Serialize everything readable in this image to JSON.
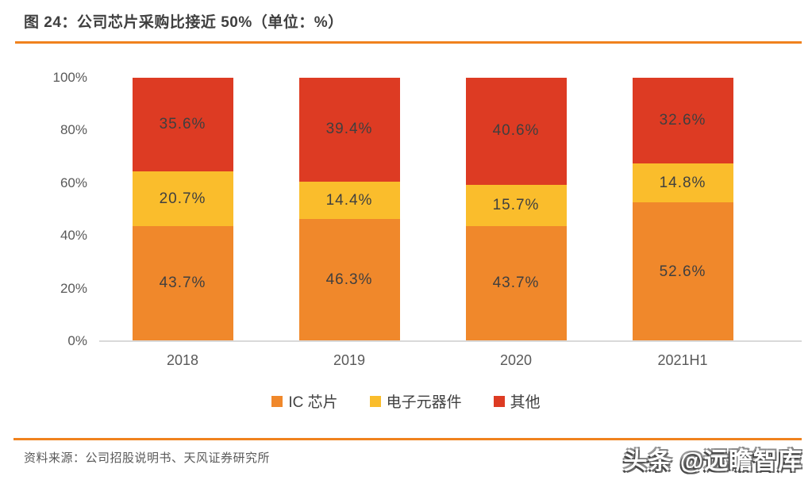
{
  "header": {
    "title": "图 24：公司芯片采购比接近 50%（单位：%）"
  },
  "chart_data": {
    "type": "bar",
    "stacked": true,
    "percent_stacked": true,
    "title": "图 24：公司芯片采购比接近 50%（单位：%）",
    "unit": "%",
    "categories": [
      "2018",
      "2019",
      "2020",
      "2021H1"
    ],
    "series": [
      {
        "name": "IC 芯片",
        "color": "#f0882b",
        "values": [
          43.7,
          46.3,
          43.7,
          52.6
        ]
      },
      {
        "name": "电子元器件",
        "color": "#fabd2c",
        "values": [
          20.7,
          14.4,
          15.7,
          14.8
        ]
      },
      {
        "name": "其他",
        "color": "#dd3b23",
        "values": [
          35.6,
          39.4,
          40.6,
          32.6
        ]
      }
    ],
    "xlabel": "",
    "ylabel": "",
    "ylim": [
      0,
      100
    ],
    "y_ticks": [
      0,
      20,
      40,
      60,
      80,
      100
    ],
    "y_tick_labels": [
      "0%",
      "20%",
      "40%",
      "60%",
      "80%",
      "100%"
    ],
    "grid": false,
    "legend_position": "bottom",
    "data_labels": "inside-center"
  },
  "footer": {
    "source": "资料来源：公司招股说明书、天风证券研究所",
    "watermark": "头条 @远瞻智库"
  },
  "colors": {
    "accent_rule": "#f0821e",
    "title_text": "#3f3f3f",
    "axis_text": "#595959",
    "label_text": "#3f3f3f",
    "baseline": "#d9d9d9"
  }
}
